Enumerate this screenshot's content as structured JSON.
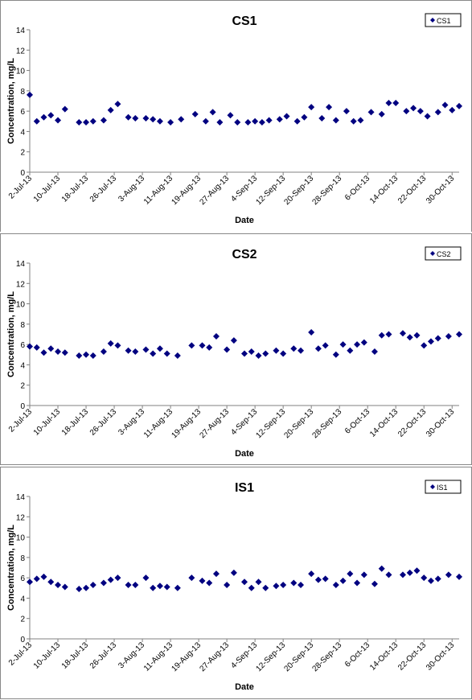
{
  "chart_data": [
    {
      "type": "scatter",
      "title": "CS1",
      "xlabel": "Date",
      "ylabel": "Concentration, mg/L",
      "ylim": [
        0,
        14
      ],
      "yticks": [
        "0",
        "2",
        "4",
        "6",
        "8",
        "10",
        "12",
        "14"
      ],
      "xticks": [
        "2-Jul-13",
        "10-Jul-13",
        "18-Jul-13",
        "26-Jul-13",
        "3-Aug-13",
        "11-Aug-13",
        "19-Aug-13",
        "27-Aug-13",
        "4-Sep-13",
        "12-Sep-13",
        "20-Sep-13",
        "28-Sep-13",
        "6-Oct-13",
        "14-Oct-13",
        "22-Oct-13",
        "30-Oct-13"
      ],
      "legend": "top-right",
      "series": [
        {
          "name": "CS1",
          "color": "#000080",
          "marker": "diamond",
          "x": [
            "2-Jul-13",
            "4-Jul-13",
            "6-Jul-13",
            "8-Jul-13",
            "10-Jul-13",
            "12-Jul-13",
            "16-Jul-13",
            "18-Jul-13",
            "20-Jul-13",
            "23-Jul-13",
            "25-Jul-13",
            "27-Jul-13",
            "30-Jul-13",
            "1-Aug-13",
            "4-Aug-13",
            "6-Aug-13",
            "8-Aug-13",
            "11-Aug-13",
            "14-Aug-13",
            "18-Aug-13",
            "21-Aug-13",
            "23-Aug-13",
            "25-Aug-13",
            "28-Aug-13",
            "30-Aug-13",
            "2-Sep-13",
            "4-Sep-13",
            "6-Sep-13",
            "8-Sep-13",
            "11-Sep-13",
            "13-Sep-13",
            "16-Sep-13",
            "18-Sep-13",
            "20-Sep-13",
            "23-Sep-13",
            "25-Sep-13",
            "27-Sep-13",
            "30-Sep-13",
            "2-Oct-13",
            "4-Oct-13",
            "7-Oct-13",
            "10-Oct-13",
            "12-Oct-13",
            "14-Oct-13",
            "17-Oct-13",
            "19-Oct-13",
            "21-Oct-13",
            "23-Oct-13",
            "26-Oct-13",
            "28-Oct-13",
            "30-Oct-13",
            "1-Nov-13"
          ],
          "y": [
            7.6,
            5.0,
            5.4,
            5.6,
            5.1,
            6.2,
            4.9,
            4.9,
            5.0,
            5.1,
            6.1,
            6.7,
            5.4,
            5.3,
            5.3,
            5.2,
            5.0,
            4.9,
            5.2,
            5.7,
            5.0,
            5.9,
            4.9,
            5.6,
            4.9,
            4.9,
            5.0,
            4.9,
            5.1,
            5.2,
            5.5,
            5.0,
            5.4,
            6.4,
            5.3,
            6.4,
            5.1,
            6.0,
            5.0,
            5.1,
            5.9,
            5.7,
            6.8,
            6.8,
            6.0,
            6.3,
            6.0,
            5.5,
            5.9,
            6.6,
            6.1,
            6.5
          ]
        }
      ]
    },
    {
      "type": "scatter",
      "title": "CS2",
      "xlabel": "Date",
      "ylabel": "Concentration, mg/L",
      "ylim": [
        0,
        14
      ],
      "yticks": [
        "0",
        "2",
        "4",
        "6",
        "8",
        "10",
        "12",
        "14"
      ],
      "xticks": [
        "2-Jul-13",
        "10-Jul-13",
        "18-Jul-13",
        "26-Jul-13",
        "3-Aug-13",
        "11-Aug-13",
        "19-Aug-13",
        "27-Aug-13",
        "4-Sep-13",
        "12-Sep-13",
        "20-Sep-13",
        "28-Sep-13",
        "6-Oct-13",
        "14-Oct-13",
        "22-Oct-13",
        "30-Oct-13"
      ],
      "legend": "top-right",
      "series": [
        {
          "name": "CS2",
          "color": "#000080",
          "marker": "diamond",
          "x": [
            "2-Jul-13",
            "4-Jul-13",
            "6-Jul-13",
            "8-Jul-13",
            "10-Jul-13",
            "12-Jul-13",
            "16-Jul-13",
            "18-Jul-13",
            "20-Jul-13",
            "23-Jul-13",
            "25-Jul-13",
            "27-Jul-13",
            "30-Jul-13",
            "1-Aug-13",
            "4-Aug-13",
            "6-Aug-13",
            "8-Aug-13",
            "10-Aug-13",
            "13-Aug-13",
            "17-Aug-13",
            "20-Aug-13",
            "22-Aug-13",
            "24-Aug-13",
            "27-Aug-13",
            "29-Aug-13",
            "1-Sep-13",
            "3-Sep-13",
            "5-Sep-13",
            "7-Sep-13",
            "10-Sep-13",
            "12-Sep-13",
            "15-Sep-13",
            "17-Sep-13",
            "20-Sep-13",
            "22-Sep-13",
            "24-Sep-13",
            "27-Sep-13",
            "29-Sep-13",
            "1-Oct-13",
            "3-Oct-13",
            "5-Oct-13",
            "8-Oct-13",
            "10-Oct-13",
            "12-Oct-13",
            "16-Oct-13",
            "18-Oct-13",
            "20-Oct-13",
            "22-Oct-13",
            "24-Oct-13",
            "26-Oct-13",
            "29-Oct-13",
            "1-Nov-13"
          ],
          "y": [
            5.8,
            5.7,
            5.2,
            5.6,
            5.3,
            5.2,
            4.9,
            5.0,
            4.9,
            5.3,
            6.1,
            5.9,
            5.4,
            5.3,
            5.5,
            5.1,
            5.6,
            5.1,
            4.9,
            5.9,
            5.9,
            5.7,
            6.8,
            5.5,
            6.4,
            5.1,
            5.3,
            4.9,
            5.1,
            5.4,
            5.1,
            5.6,
            5.4,
            7.2,
            5.6,
            5.9,
            5.0,
            6.0,
            5.4,
            6.0,
            6.2,
            5.3,
            6.9,
            7.0,
            7.1,
            6.7,
            6.9,
            5.9,
            6.3,
            6.6,
            6.8,
            7.0
          ]
        }
      ]
    },
    {
      "type": "scatter",
      "title": "IS1",
      "xlabel": "Date",
      "ylabel": "Concentration, mg/L",
      "ylim": [
        0,
        14
      ],
      "yticks": [
        "0",
        "2",
        "4",
        "6",
        "8",
        "10",
        "12",
        "14"
      ],
      "xticks": [
        "2-Jul-13",
        "10-Jul-13",
        "18-Jul-13",
        "26-Jul-13",
        "3-Aug-13",
        "11-Aug-13",
        "19-Aug-13",
        "27-Aug-13",
        "4-Sep-13",
        "12-Sep-13",
        "20-Sep-13",
        "28-Sep-13",
        "6-Oct-13",
        "14-Oct-13",
        "22-Oct-13",
        "30-Oct-13"
      ],
      "legend": "top-right",
      "series": [
        {
          "name": "IS1",
          "color": "#000080",
          "marker": "diamond",
          "x": [
            "2-Jul-13",
            "4-Jul-13",
            "6-Jul-13",
            "8-Jul-13",
            "10-Jul-13",
            "12-Jul-13",
            "16-Jul-13",
            "18-Jul-13",
            "20-Jul-13",
            "23-Jul-13",
            "25-Jul-13",
            "27-Jul-13",
            "30-Jul-13",
            "1-Aug-13",
            "4-Aug-13",
            "6-Aug-13",
            "8-Aug-13",
            "10-Aug-13",
            "13-Aug-13",
            "17-Aug-13",
            "20-Aug-13",
            "22-Aug-13",
            "24-Aug-13",
            "27-Aug-13",
            "29-Aug-13",
            "1-Sep-13",
            "3-Sep-13",
            "5-Sep-13",
            "7-Sep-13",
            "10-Sep-13",
            "12-Sep-13",
            "15-Sep-13",
            "17-Sep-13",
            "20-Sep-13",
            "22-Sep-13",
            "24-Sep-13",
            "27-Sep-13",
            "29-Sep-13",
            "1-Oct-13",
            "3-Oct-13",
            "5-Oct-13",
            "8-Oct-13",
            "10-Oct-13",
            "12-Oct-13",
            "16-Oct-13",
            "18-Oct-13",
            "20-Oct-13",
            "22-Oct-13",
            "24-Oct-13",
            "26-Oct-13",
            "29-Oct-13",
            "1-Nov-13"
          ],
          "y": [
            5.6,
            5.9,
            6.1,
            5.6,
            5.3,
            5.1,
            4.9,
            5.0,
            5.3,
            5.5,
            5.8,
            6.0,
            5.3,
            5.3,
            6.0,
            5.0,
            5.2,
            5.1,
            5.0,
            6.0,
            5.7,
            5.5,
            6.4,
            5.3,
            6.5,
            5.6,
            5.0,
            5.6,
            5.0,
            5.2,
            5.3,
            5.5,
            5.3,
            6.4,
            5.8,
            5.9,
            5.3,
            5.7,
            6.4,
            5.5,
            6.3,
            5.4,
            6.9,
            6.3,
            6.3,
            6.5,
            6.7,
            6.0,
            5.7,
            5.9,
            6.3,
            6.1
          ]
        }
      ]
    }
  ]
}
